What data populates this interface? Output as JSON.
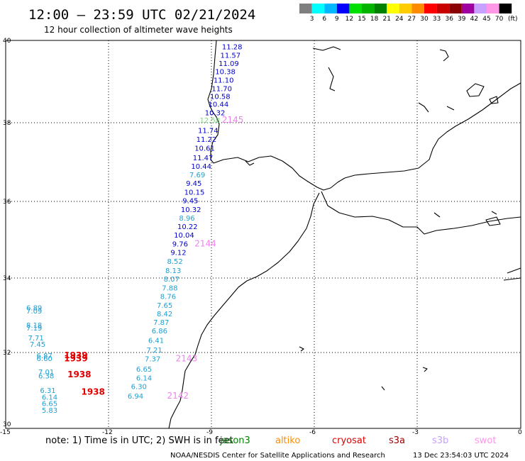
{
  "header": {
    "title": "12:00 — 23:59 UTC 02/21/2024",
    "subtitle": "12 hour collection of altimeter wave heights"
  },
  "legend": {
    "swatches": [
      {
        "color": "#7f7f7f",
        "label": "3"
      },
      {
        "color": "#00ffff",
        "label": "6"
      },
      {
        "color": "#00b8ff",
        "label": "9"
      },
      {
        "color": "#0000ff",
        "label": "12"
      },
      {
        "color": "#00e000",
        "label": "15"
      },
      {
        "color": "#00b400",
        "label": "18"
      },
      {
        "color": "#008200",
        "label": "21"
      },
      {
        "color": "#ffff00",
        "label": "24"
      },
      {
        "color": "#ffcc00",
        "label": "27"
      },
      {
        "color": "#ff8c00",
        "label": "30"
      },
      {
        "color": "#ff0000",
        "label": "33"
      },
      {
        "color": "#c80000",
        "label": "36"
      },
      {
        "color": "#8b0000",
        "label": "39"
      },
      {
        "color": "#a000a0",
        "label": "42"
      },
      {
        "color": "#c8a0ff",
        "label": "45"
      },
      {
        "color": "#ff96e6",
        "label": "70"
      },
      {
        "color": "#000000",
        "label": ""
      }
    ],
    "unit": "(ft)"
  },
  "axes": {
    "lon_ticks": [
      "-15",
      "-12",
      "-9",
      "-6",
      "-3",
      "0"
    ],
    "lat_ticks": [
      "40",
      "38",
      "36",
      "34",
      "32",
      "30"
    ]
  },
  "labels": [
    {
      "text": "11.28",
      "lon": -8.7,
      "lat": 39.77,
      "color": "#0000cd"
    },
    {
      "text": "11.57",
      "lon": -8.75,
      "lat": 39.55,
      "color": "#0000cd"
    },
    {
      "text": "11.09",
      "lon": -8.8,
      "lat": 39.33,
      "color": "#0000cd"
    },
    {
      "text": "10.38",
      "lon": -8.9,
      "lat": 39.12,
      "color": "#0000cd"
    },
    {
      "text": "11.10",
      "lon": -8.95,
      "lat": 38.9,
      "color": "#0000cd"
    },
    {
      "text": "11.70",
      "lon": -9.0,
      "lat": 38.68,
      "color": "#0000cd"
    },
    {
      "text": "10.58",
      "lon": -9.05,
      "lat": 38.47,
      "color": "#0000cd"
    },
    {
      "text": "10.44",
      "lon": -9.1,
      "lat": 38.27,
      "color": "#0000cd"
    },
    {
      "text": "10.32",
      "lon": -9.2,
      "lat": 38.05,
      "color": "#0000cd"
    },
    {
      "text": "12.58",
      "lon": -9.35,
      "lat": 37.85,
      "color": "#7cd67c"
    },
    {
      "text": "2145",
      "lon": -8.7,
      "lat": 37.85,
      "color": "#ee82ee"
    },
    {
      "text": "11.74",
      "lon": -9.4,
      "lat": 37.58,
      "color": "#0000cd"
    },
    {
      "text": "11.22",
      "lon": -9.45,
      "lat": 37.35,
      "color": "#0000cd"
    },
    {
      "text": "10.61",
      "lon": -9.5,
      "lat": 37.12,
      "color": "#0000cd"
    },
    {
      "text": "11.47",
      "lon": -9.55,
      "lat": 36.87,
      "color": "#0000cd"
    },
    {
      "text": "10.44",
      "lon": -9.6,
      "lat": 36.65,
      "color": "#0000cd"
    },
    {
      "text": "7.69",
      "lon": -9.65,
      "lat": 36.43,
      "color": "#1ea0d2"
    },
    {
      "text": "9.45",
      "lon": -9.75,
      "lat": 36.2,
      "color": "#0000cd"
    },
    {
      "text": "10.15",
      "lon": -9.8,
      "lat": 35.97,
      "color": "#0000cd"
    },
    {
      "text": "9.45",
      "lon": -9.85,
      "lat": 35.75,
      "color": "#0000cd"
    },
    {
      "text": "10.32",
      "lon": -9.9,
      "lat": 35.52,
      "color": "#0000cd"
    },
    {
      "text": "8.96",
      "lon": -9.95,
      "lat": 35.3,
      "color": "#1ea0d2"
    },
    {
      "text": "10.22",
      "lon": -10.0,
      "lat": 35.07,
      "color": "#0000cd"
    },
    {
      "text": "10.04",
      "lon": -10.1,
      "lat": 34.85,
      "color": "#0000cd"
    },
    {
      "text": "9.76",
      "lon": -10.15,
      "lat": 34.62,
      "color": "#0000cd"
    },
    {
      "text": "2144",
      "lon": -9.5,
      "lat": 34.62,
      "color": "#ee82ee"
    },
    {
      "text": "9.12",
      "lon": -10.2,
      "lat": 34.4,
      "color": "#0000cd"
    },
    {
      "text": "8.52",
      "lon": -10.3,
      "lat": 34.17,
      "color": "#1ea0d2"
    },
    {
      "text": "8.13",
      "lon": -10.35,
      "lat": 33.93,
      "color": "#1ea0d2"
    },
    {
      "text": "8.07",
      "lon": -10.4,
      "lat": 33.7,
      "color": "#1ea0d2"
    },
    {
      "text": "7.88",
      "lon": -10.45,
      "lat": 33.47,
      "color": "#1ea0d2"
    },
    {
      "text": "8.76",
      "lon": -10.5,
      "lat": 33.25,
      "color": "#1ea0d2"
    },
    {
      "text": "7.65",
      "lon": -10.6,
      "lat": 33.02,
      "color": "#1ea0d2"
    },
    {
      "text": "8.42",
      "lon": -10.6,
      "lat": 32.8,
      "color": "#1ea0d2"
    },
    {
      "text": "7.87",
      "lon": -10.7,
      "lat": 32.57,
      "color": "#1ea0d2"
    },
    {
      "text": "6.86",
      "lon": -10.75,
      "lat": 32.35,
      "color": "#1ea0d2"
    },
    {
      "text": "6.41",
      "lon": -10.85,
      "lat": 32.1,
      "color": "#1ea0d2"
    },
    {
      "text": "7.21",
      "lon": -10.9,
      "lat": 31.85,
      "color": "#1ea0d2"
    },
    {
      "text": "7.37",
      "lon": -10.95,
      "lat": 31.62,
      "color": "#1ea0d2"
    },
    {
      "text": "2143",
      "lon": -10.05,
      "lat": 31.62,
      "color": "#ee82ee"
    },
    {
      "text": "6.65",
      "lon": -11.2,
      "lat": 31.35,
      "color": "#1ea0d2"
    },
    {
      "text": "6.14",
      "lon": -11.2,
      "lat": 31.12,
      "color": "#1ea0d2"
    },
    {
      "text": "6.30",
      "lon": -11.35,
      "lat": 30.9,
      "color": "#1ea0d2"
    },
    {
      "text": "6.94",
      "lon": -11.45,
      "lat": 30.65,
      "color": "#1ea0d2"
    },
    {
      "text": "2142",
      "lon": -10.3,
      "lat": 30.65,
      "color": "#ee82ee"
    },
    {
      "text": "6.89",
      "lon": -14.4,
      "lat": 32.95,
      "color": "#1ea0d2"
    },
    {
      "text": "7.09",
      "lon": -14.4,
      "lat": 32.87,
      "color": "#1ea0d2"
    },
    {
      "text": "8.18",
      "lon": -14.4,
      "lat": 32.5,
      "color": "#1ea0d2"
    },
    {
      "text": "7.19",
      "lon": -14.4,
      "lat": 32.43,
      "color": "#1ea0d2"
    },
    {
      "text": "7.71",
      "lon": -14.35,
      "lat": 32.17,
      "color": "#1ea0d2"
    },
    {
      "text": "7.45",
      "lon": -14.3,
      "lat": 32.0,
      "color": "#1ea0d2"
    },
    {
      "text": "6.87",
      "lon": -14.1,
      "lat": 31.7,
      "color": "#1ea0d2"
    },
    {
      "text": "6.60",
      "lon": -14.1,
      "lat": 31.63,
      "color": "#1ea0d2"
    },
    {
      "text": "1939",
      "lon": -13.3,
      "lat": 31.7,
      "color": "#e00000"
    },
    {
      "text": "1939",
      "lon": -13.3,
      "lat": 31.62,
      "color": "#e00000"
    },
    {
      "text": "7.01",
      "lon": -14.05,
      "lat": 31.28,
      "color": "#1ea0d2"
    },
    {
      "text": "6.38",
      "lon": -14.05,
      "lat": 31.18,
      "color": "#1ea0d2"
    },
    {
      "text": "1938",
      "lon": -13.2,
      "lat": 31.2,
      "color": "#e00000"
    },
    {
      "text": "6.31",
      "lon": -14.0,
      "lat": 30.8,
      "color": "#1ea0d2"
    },
    {
      "text": "6.14",
      "lon": -13.95,
      "lat": 30.62,
      "color": "#1ea0d2"
    },
    {
      "text": "1938",
      "lon": -12.8,
      "lat": 30.75,
      "color": "#e00000"
    },
    {
      "text": "6.65",
      "lon": -13.95,
      "lat": 30.45,
      "color": "#1ea0d2"
    },
    {
      "text": "5.83",
      "lon": -13.95,
      "lat": 30.28,
      "color": "#1ea0d2"
    }
  ],
  "footer": {
    "note": "note: 1) Time is in UTC; 2) SWH is in feet",
    "missions": [
      {
        "name": "jason3",
        "color": "#008200"
      },
      {
        "name": "altiko",
        "color": "#ff8c00"
      },
      {
        "name": "cryosat",
        "color": "#e00000"
      },
      {
        "name": "s3a",
        "color": "#a00000"
      },
      {
        "name": "s3b",
        "color": "#c8a0ff"
      },
      {
        "name": "swot",
        "color": "#ff96e6"
      }
    ],
    "credit": "NOAA/NESDIS Center for Satellite Applications and Research",
    "timestamp": "13 Dec 23:54:03 UTC 2024"
  }
}
